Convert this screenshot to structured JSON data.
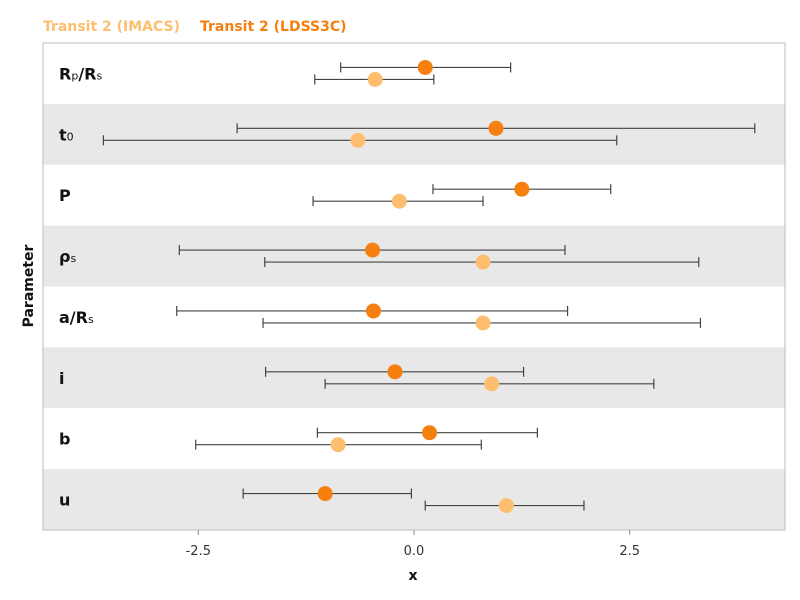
{
  "legend": [
    {
      "name": "Transit 2 (IMACS)",
      "color": "#fdbf6f"
    },
    {
      "name": "Transit 2 (LDSS3C)",
      "color": "#f57f0f"
    }
  ],
  "chart_data": {
    "type": "scatter",
    "subtype": "errorbar-forest",
    "xlabel": "x",
    "ylabel": "Parameter",
    "xlim": [
      -4.3,
      4.3
    ],
    "xticks": [
      -2.5,
      0.0,
      2.5
    ],
    "xtick_labels": [
      "-2.5",
      "0.0",
      "2.5"
    ],
    "grid": false,
    "legend_position": "top-left",
    "row_background_colors": [
      "#ffffff",
      "#e8e8e8"
    ],
    "categories": [
      {
        "id": "rp_rs",
        "label_main": "R",
        "label_sub1": "p",
        "label_mid": "/R",
        "label_sub2": "s"
      },
      {
        "id": "t0",
        "label_main": "t",
        "label_sub1": "0",
        "label_mid": "",
        "label_sub2": ""
      },
      {
        "id": "P",
        "label_main": "P",
        "label_sub1": "",
        "label_mid": "",
        "label_sub2": ""
      },
      {
        "id": "rho_s",
        "label_main": "ρ",
        "label_sub1": "s",
        "label_mid": "",
        "label_sub2": ""
      },
      {
        "id": "a_rs",
        "label_main": "a/R",
        "label_sub1": "s",
        "label_mid": "",
        "label_sub2": ""
      },
      {
        "id": "i",
        "label_main": "i",
        "label_sub1": "",
        "label_mid": "",
        "label_sub2": ""
      },
      {
        "id": "b",
        "label_main": "b",
        "label_sub1": "",
        "label_mid": "",
        "label_sub2": ""
      },
      {
        "id": "u",
        "label_main": "u",
        "label_sub1": "",
        "label_mid": "",
        "label_sub2": ""
      }
    ],
    "series": [
      {
        "name": "Transit 2 (LDSS3C)",
        "color": "#f57f0f",
        "points": [
          {
            "x": 0.13,
            "xmin": -0.85,
            "xmax": 1.12
          },
          {
            "x": 0.95,
            "xmin": -2.05,
            "xmax": 3.95
          },
          {
            "x": 1.25,
            "xmin": 0.22,
            "xmax": 2.28
          },
          {
            "x": -0.48,
            "xmin": -2.72,
            "xmax": 1.75
          },
          {
            "x": -0.47,
            "xmin": -2.75,
            "xmax": 1.78
          },
          {
            "x": -0.22,
            "xmin": -1.72,
            "xmax": 1.27
          },
          {
            "x": 0.18,
            "xmin": -1.12,
            "xmax": 1.43
          },
          {
            "x": -1.03,
            "xmin": -1.98,
            "xmax": -0.03
          }
        ]
      },
      {
        "name": "Transit 2 (IMACS)",
        "color": "#fdbf6f",
        "points": [
          {
            "x": -0.45,
            "xmin": -1.15,
            "xmax": 0.23
          },
          {
            "x": -0.65,
            "xmin": -3.6,
            "xmax": 2.35
          },
          {
            "x": -0.17,
            "xmin": -1.17,
            "xmax": 0.8
          },
          {
            "x": 0.8,
            "xmin": -1.73,
            "xmax": 3.3
          },
          {
            "x": 0.8,
            "xmin": -1.75,
            "xmax": 3.32
          },
          {
            "x": 0.9,
            "xmin": -1.03,
            "xmax": 2.78
          },
          {
            "x": -0.88,
            "xmin": -2.53,
            "xmax": 0.78
          },
          {
            "x": 1.07,
            "xmin": 0.13,
            "xmax": 1.97
          }
        ]
      }
    ]
  }
}
